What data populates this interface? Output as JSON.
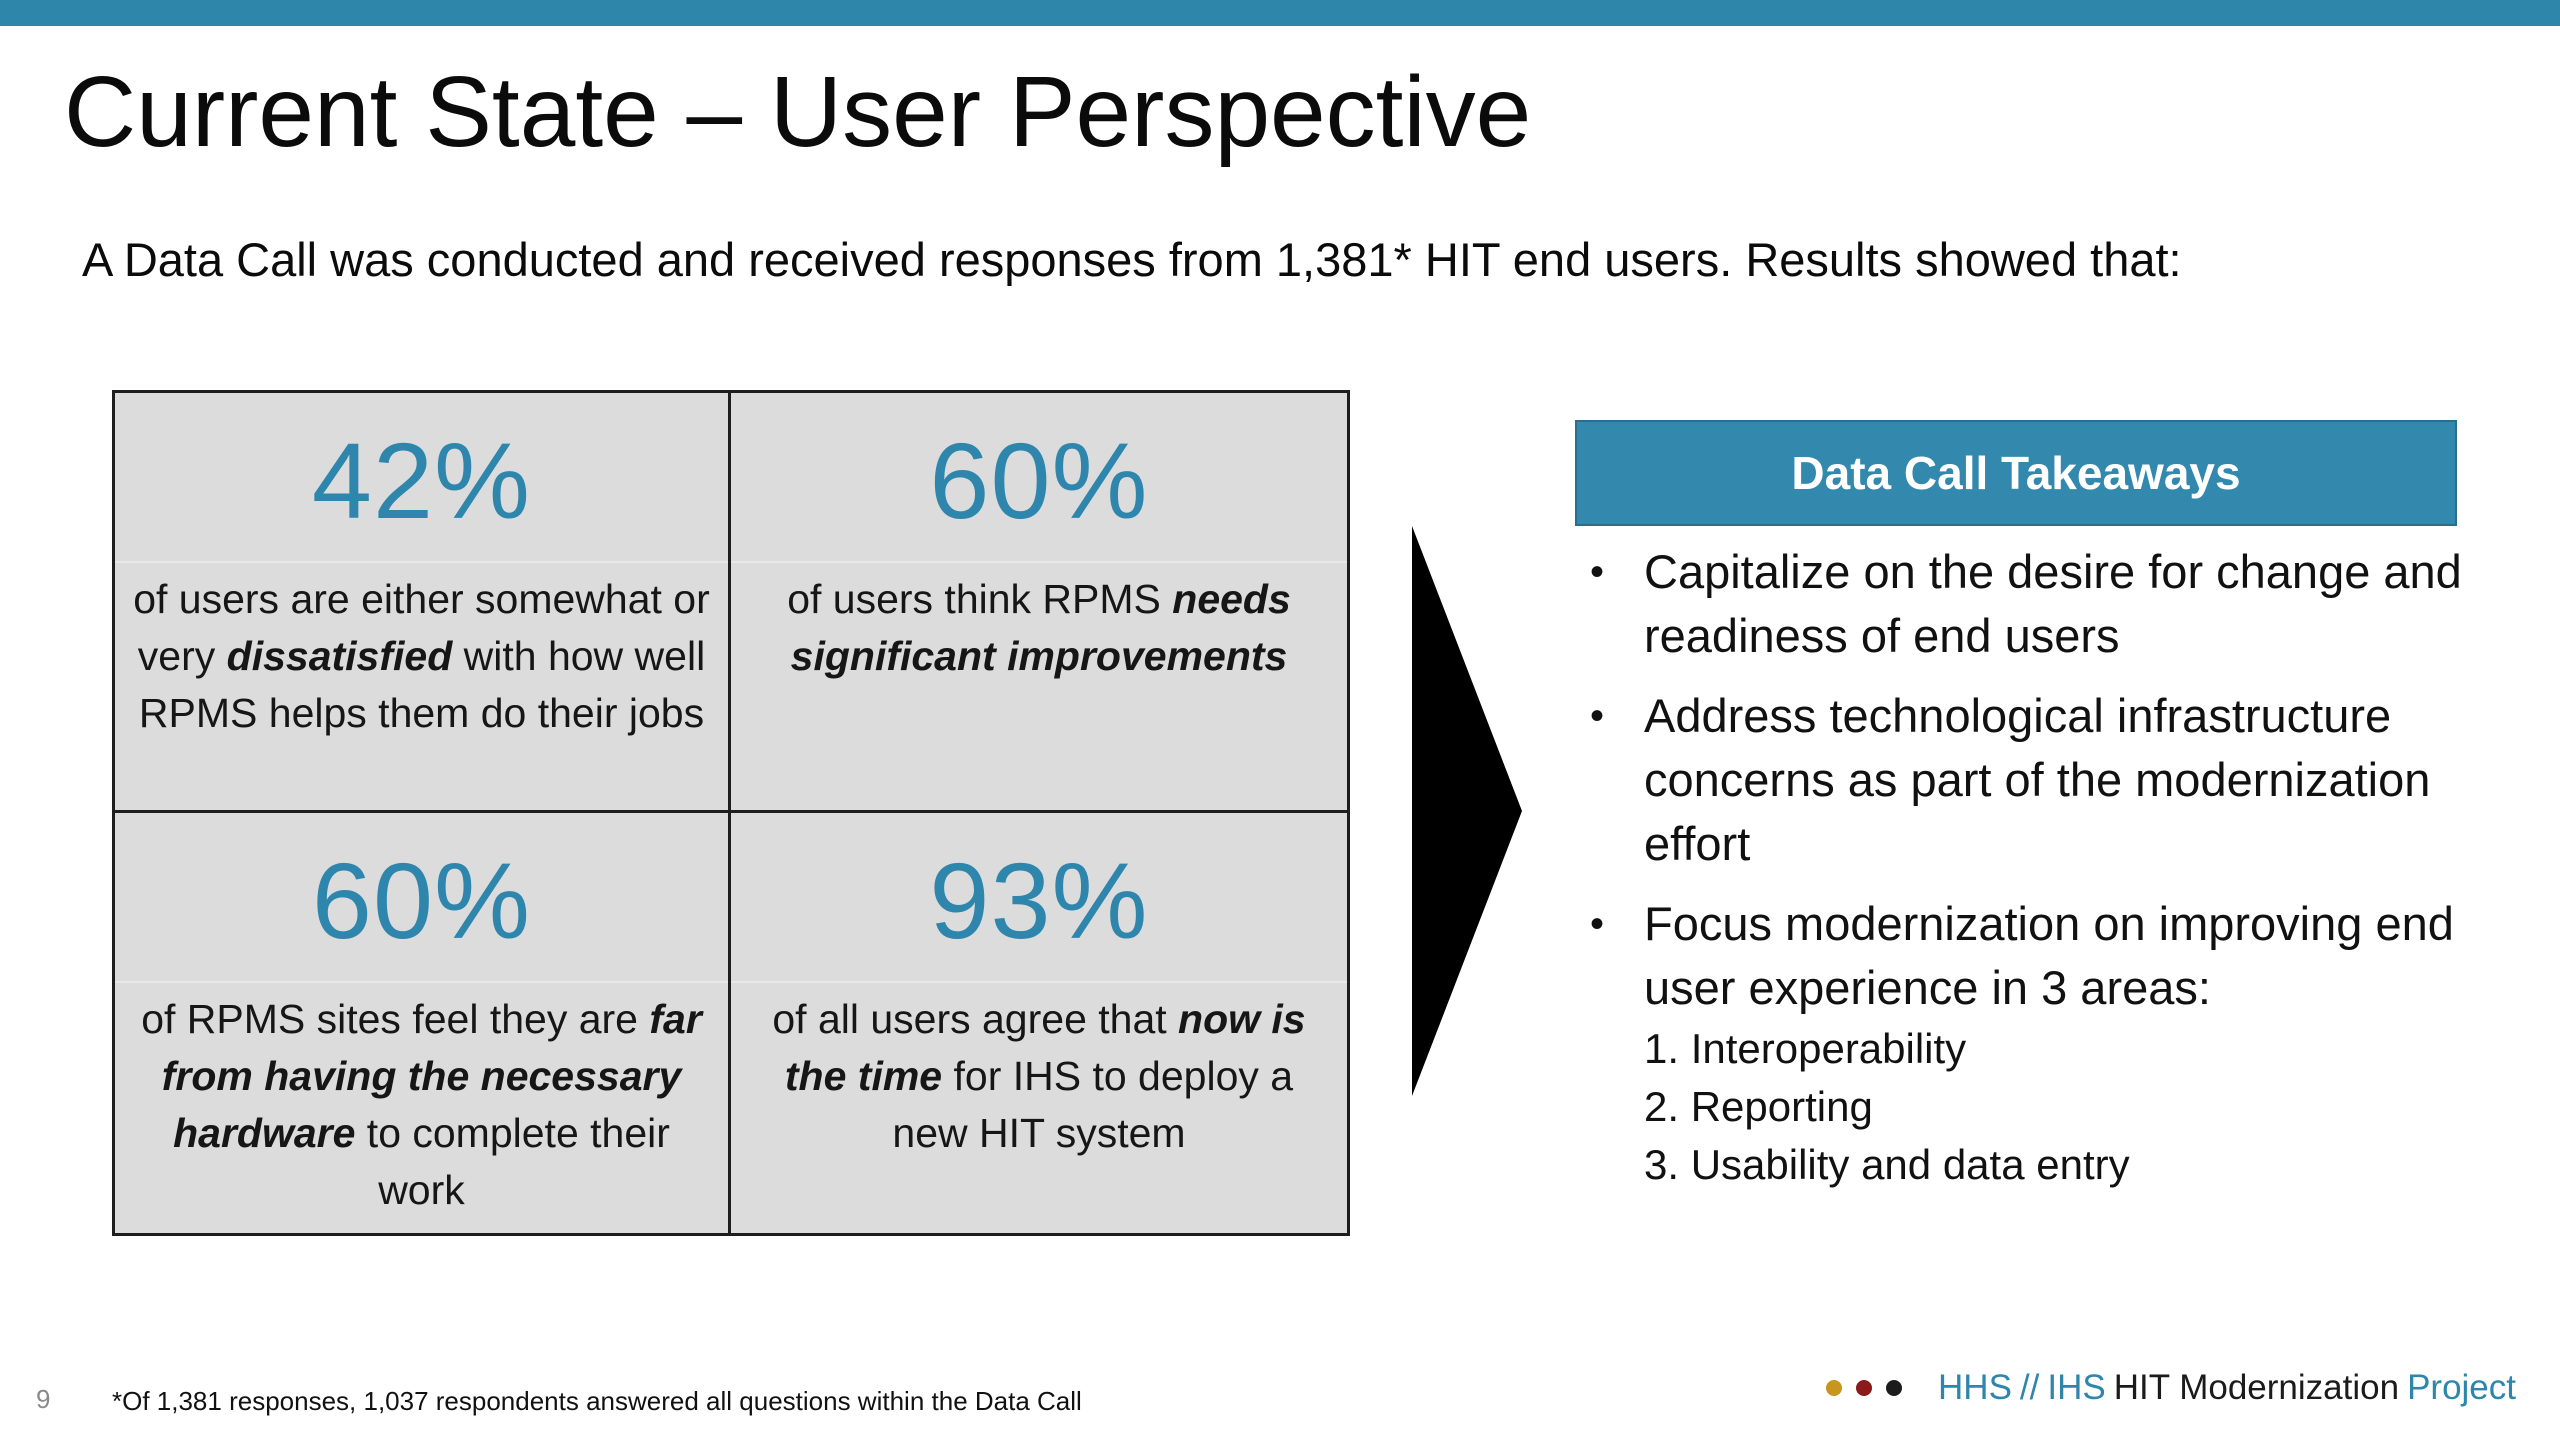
{
  "slide": {
    "title": "Current State – User Perspective",
    "intro": "A Data Call was conducted and received responses from 1,381* HIT end users. Results showed that:",
    "page_number": "9",
    "footnote": "*Of 1,381 responses, 1,037 respondents answered all questions within the Data Call"
  },
  "stats": [
    {
      "value": "42%",
      "parts": [
        "of users are either somewhat or very ",
        "dissatisfied",
        " with how well RPMS helps them do their jobs"
      ]
    },
    {
      "value": "60%",
      "parts": [
        "of users think RPMS ",
        "needs significant improvements",
        ""
      ]
    },
    {
      "value": "60%",
      "parts": [
        "of RPMS sites feel they are ",
        "far from having the necessary hardware",
        " to complete their work"
      ]
    },
    {
      "value": "93%",
      "parts": [
        "of all users agree that ",
        "now is the time",
        " for IHS to deploy a new HIT system"
      ]
    }
  ],
  "takeaways": {
    "header": "Data Call Takeaways",
    "bullet_glyph": "•",
    "items": [
      "Capitalize on the desire for change and readiness of end users",
      "Address technological infrastructure concerns as part of the modernization effort",
      "Focus modernization on improving end user experience in 3 areas:"
    ],
    "subitems": [
      "1. Interoperability",
      "2. Reporting",
      "3. Usability and data entry"
    ]
  },
  "brand": {
    "hhs": "HHS",
    "sep": "//",
    "ihs": "IHS",
    "mid": "HIT Modernization",
    "project": "Project",
    "dot_colors": [
      "#c8951d",
      "#8b1a1a",
      "#1b1b1b"
    ]
  },
  "colors": {
    "accent": "#2e86ab",
    "stat_value": "#2f86ad",
    "cell_bg": "#dcdcdc"
  }
}
